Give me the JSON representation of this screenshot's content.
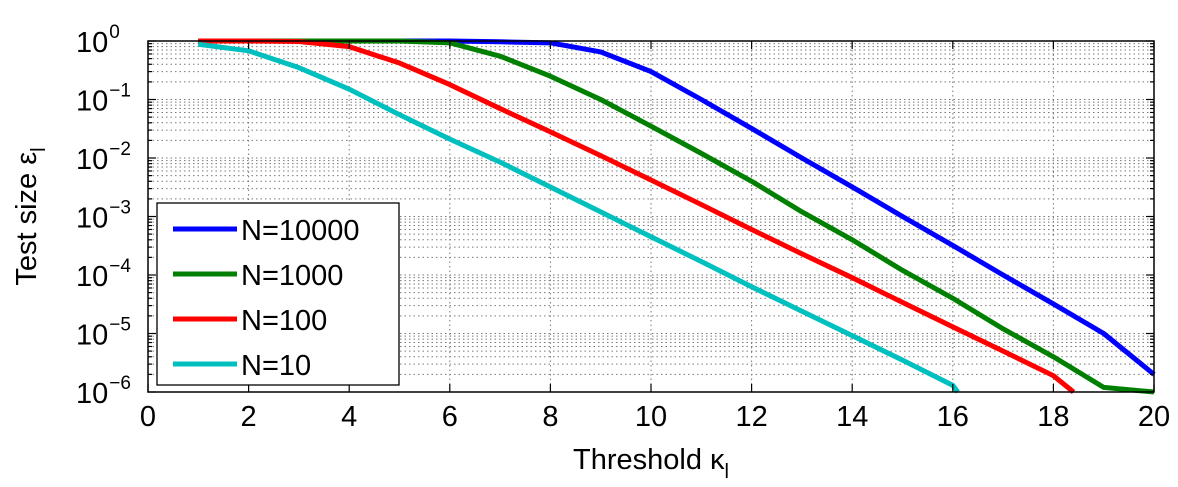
{
  "chart_data": {
    "type": "line",
    "xlabel": "Threshold κ",
    "xlabel_sub": "l",
    "ylabel": "Test size ε",
    "ylabel_sub": "l",
    "xlim": [
      0,
      20
    ],
    "ylim": [
      1e-06,
      1
    ],
    "yscale": "log",
    "grid": true,
    "legend_position": "lower-left",
    "x_ticks": [
      0,
      2,
      4,
      6,
      8,
      10,
      12,
      14,
      16,
      18,
      20
    ],
    "x_tick_labels": [
      "0",
      "2",
      "4",
      "6",
      "8",
      "10",
      "12",
      "14",
      "16",
      "18",
      "20"
    ],
    "y_ticks": [
      1e-06,
      1e-05,
      0.0001,
      0.001,
      0.01,
      0.1,
      1
    ],
    "y_tick_base": "10",
    "y_tick_exponents": [
      "−6",
      "−5",
      "−4",
      "−3",
      "−2",
      "−1",
      "0"
    ],
    "series": [
      {
        "name": "N=10000",
        "color": "#0000ff",
        "x": [
          1,
          2,
          3,
          4,
          5,
          6,
          7,
          8,
          9,
          10,
          11,
          12,
          13,
          14,
          15,
          16,
          17,
          18,
          19,
          20
        ],
        "y": [
          1,
          1,
          1,
          1,
          1,
          1,
          0.97,
          0.93,
          0.65,
          0.3,
          0.1,
          0.032,
          0.01,
          0.0032,
          0.001,
          0.00032,
          0.0001,
          3.2e-05,
          1e-05,
          2e-06
        ]
      },
      {
        "name": "N=1000",
        "color": "#007f00",
        "x": [
          1,
          2,
          3,
          4,
          5,
          6,
          7,
          8,
          9,
          10,
          11,
          12,
          13,
          14,
          15,
          16,
          17,
          18,
          19,
          20
        ],
        "y": [
          1,
          1,
          1,
          1,
          1,
          0.93,
          0.55,
          0.25,
          0.1,
          0.035,
          0.012,
          0.004,
          0.0012,
          0.0004,
          0.00012,
          4e-05,
          1.2e-05,
          4e-06,
          1.2e-06,
          2e-07
        ]
      },
      {
        "name": "N=100",
        "color": "#ff0000",
        "x": [
          1,
          2,
          3,
          4,
          5,
          6,
          7,
          8,
          9,
          10,
          11,
          12,
          13,
          14,
          15,
          16,
          17,
          18,
          18.4
        ],
        "y": [
          1,
          1,
          0.98,
          0.8,
          0.42,
          0.18,
          0.07,
          0.028,
          0.011,
          0.0042,
          0.0016,
          0.0006,
          0.00023,
          9e-05,
          3.4e-05,
          1.3e-05,
          5e-06,
          1.9e-06,
          1e-06
        ]
      },
      {
        "name": "N=10",
        "color": "#00bfbf",
        "x": [
          1,
          2,
          3,
          4,
          5,
          6,
          7,
          8,
          9,
          10,
          11,
          12,
          13,
          14,
          15,
          16,
          16.1
        ],
        "y": [
          0.88,
          0.68,
          0.35,
          0.15,
          0.055,
          0.021,
          0.0085,
          0.0032,
          0.0012,
          0.00045,
          0.00017,
          6.3e-05,
          2.4e-05,
          9.2e-06,
          3.5e-06,
          1.3e-06,
          1e-06
        ]
      }
    ]
  }
}
